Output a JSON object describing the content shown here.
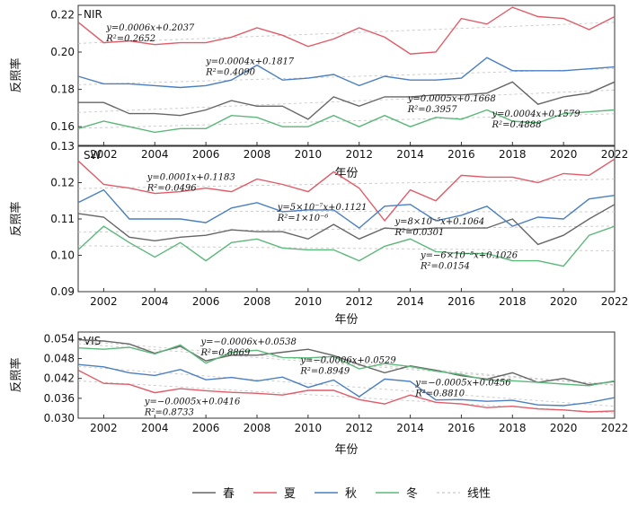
{
  "legend": [
    {
      "key": "spring",
      "label": "春",
      "color": "#666666",
      "dash": false
    },
    {
      "key": "summer",
      "label": "夏",
      "color": "#e25b68",
      "dash": false
    },
    {
      "key": "autumn",
      "label": "秋",
      "color": "#4a7fc1",
      "dash": false
    },
    {
      "key": "winter",
      "label": "冬",
      "color": "#5cb87a",
      "dash": false
    },
    {
      "key": "linear",
      "label": "线性",
      "color": "#bbbbbb",
      "dash": true
    }
  ],
  "chart_data": [
    {
      "type": "line",
      "panel_label": "NIR",
      "xlabel": "年份",
      "ylabel": "反照率",
      "xlim": [
        2001,
        2022
      ],
      "ylim": [
        0.15,
        0.225
      ],
      "yticks": [
        "0.16",
        "0.18",
        "0.20",
        "0.22"
      ],
      "ytick_values": [
        0.16,
        0.18,
        0.2,
        0.22
      ],
      "xticks": [
        "2002",
        "2004",
        "2006",
        "2008",
        "2010",
        "2012",
        "2014",
        "2016",
        "2018",
        "2020",
        "2022"
      ],
      "x": [
        2001,
        2002,
        2003,
        2004,
        2005,
        2006,
        2007,
        2008,
        2009,
        2010,
        2011,
        2012,
        2013,
        2014,
        2015,
        2016,
        2017,
        2018,
        2019,
        2020,
        2021,
        2022
      ],
      "series": [
        {
          "name": "春",
          "color": "#666666",
          "values": [
            0.173,
            0.173,
            0.167,
            0.167,
            0.166,
            0.169,
            0.174,
            0.171,
            0.171,
            0.164,
            0.176,
            0.171,
            0.176,
            0.176,
            0.177,
            0.177,
            0.178,
            0.184,
            0.172,
            0.176,
            0.178,
            0.184
          ]
        },
        {
          "name": "夏",
          "color": "#e25b68",
          "values": [
            0.216,
            0.205,
            0.206,
            0.204,
            0.205,
            0.205,
            0.208,
            0.213,
            0.209,
            0.203,
            0.207,
            0.213,
            0.208,
            0.199,
            0.2,
            0.218,
            0.215,
            0.224,
            0.219,
            0.218,
            0.212,
            0.219
          ]
        },
        {
          "name": "秋",
          "color": "#4a7fc1",
          "values": [
            0.187,
            0.183,
            0.183,
            0.182,
            0.181,
            0.182,
            0.185,
            0.193,
            0.185,
            0.186,
            0.188,
            0.182,
            0.187,
            0.185,
            0.185,
            0.186,
            0.197,
            0.19,
            0.19,
            0.19,
            0.191,
            0.192
          ]
        },
        {
          "name": "冬",
          "color": "#5cb87a",
          "values": [
            0.159,
            0.163,
            0.16,
            0.157,
            0.159,
            0.159,
            0.166,
            0.165,
            0.16,
            0.16,
            0.166,
            0.16,
            0.166,
            0.16,
            0.165,
            0.164,
            0.169,
            0.163,
            0.162,
            0.167,
            0.168,
            0.169
          ]
        }
      ],
      "annotations": [
        {
          "eq": "y=0.0006x+0.2037",
          "r2": "R²=0.2652",
          "x": 2002.1,
          "y": 0.2115
        },
        {
          "eq": "y=0.0004x+0.1817",
          "r2": "R²=0.4090",
          "x": 2006.0,
          "y": 0.1935
        },
        {
          "eq": "y=0.0005x+0.1668",
          "r2": "R²=0.3957",
          "x": 2013.9,
          "y": 0.1735
        },
        {
          "eq": "y=0.0004x+0.1579",
          "r2": "R²=0.4888",
          "x": 2017.2,
          "y": 0.1655
        }
      ]
    },
    {
      "type": "line",
      "panel_label": "SW",
      "xlabel": "年份",
      "ylabel": "反照率",
      "xlim": [
        2001,
        2022
      ],
      "ylim": [
        0.09,
        0.13
      ],
      "yticks": [
        "0.09",
        "0.10",
        "0.11",
        "0.12",
        "0.13"
      ],
      "ytick_values": [
        0.09,
        0.1,
        0.11,
        0.12,
        0.13
      ],
      "xticks": [
        "2002",
        "2004",
        "2006",
        "2008",
        "2010",
        "2012",
        "2014",
        "2016",
        "2018",
        "2020",
        "2022"
      ],
      "x": [
        2001,
        2002,
        2003,
        2004,
        2005,
        2006,
        2007,
        2008,
        2009,
        2010,
        2011,
        2012,
        2013,
        2014,
        2015,
        2016,
        2017,
        2018,
        2019,
        2020,
        2021,
        2022
      ],
      "series": [
        {
          "name": "春",
          "color": "#666666",
          "values": [
            0.1115,
            0.1105,
            0.105,
            0.104,
            0.105,
            0.1055,
            0.107,
            0.1065,
            0.1065,
            0.1045,
            0.1085,
            0.1045,
            0.1075,
            0.107,
            0.1075,
            0.1075,
            0.1075,
            0.11,
            0.103,
            0.1055,
            0.11,
            0.114
          ]
        },
        {
          "name": "夏",
          "color": "#e25b68",
          "values": [
            0.126,
            0.1195,
            0.1185,
            0.117,
            0.1175,
            0.1185,
            0.1175,
            0.121,
            0.1195,
            0.1175,
            0.123,
            0.1185,
            0.1095,
            0.118,
            0.115,
            0.122,
            0.1215,
            0.1215,
            0.12,
            0.1225,
            0.122,
            0.1265
          ]
        },
        {
          "name": "秋",
          "color": "#4a7fc1",
          "values": [
            0.1145,
            0.118,
            0.11,
            0.11,
            0.11,
            0.109,
            0.113,
            0.1145,
            0.112,
            0.1125,
            0.1125,
            0.1075,
            0.1135,
            0.114,
            0.1095,
            0.111,
            0.1135,
            0.108,
            0.1105,
            0.11,
            0.1155,
            0.1165
          ]
        },
        {
          "name": "冬",
          "color": "#5cb87a",
          "values": [
            0.1015,
            0.108,
            0.1035,
            0.0995,
            0.1035,
            0.0985,
            0.1035,
            0.1045,
            0.102,
            0.1015,
            0.1015,
            0.0985,
            0.1025,
            0.1045,
            0.101,
            0.1005,
            0.1005,
            0.0985,
            0.0985,
            0.097,
            0.1055,
            0.108
          ]
        }
      ],
      "annotations": [
        {
          "eq": "y=0.0001x+0.1183",
          "r2": "R²=0.0496",
          "x": 2003.7,
          "y": 0.1208
        },
        {
          "eq": "y=5×10⁻⁷x+0.1121",
          "r2": "R²=1×10⁻⁶",
          "x": 2008.8,
          "y": 0.1125
        },
        {
          "eq": "y=8×10⁻⁵x+0.1064",
          "r2": "R²=0.0301",
          "x": 2013.4,
          "y": 0.1085
        },
        {
          "eq": "y=−6×10⁻⁵x+0.1026",
          "r2": "R²=0.0154",
          "x": 2014.4,
          "y": 0.0993
        }
      ]
    },
    {
      "type": "line",
      "panel_label": "VIS",
      "xlabel": "年份",
      "ylabel": "反照率",
      "xlim": [
        2001,
        2022
      ],
      "ylim": [
        0.03,
        0.056
      ],
      "yticks": [
        "0.030",
        "0.036",
        "0.042",
        "0.048",
        "0.054"
      ],
      "ytick_values": [
        0.03,
        0.036,
        0.042,
        0.048,
        0.054
      ],
      "xticks": [
        "2002",
        "2004",
        "2006",
        "2008",
        "2010",
        "2012",
        "2014",
        "2016",
        "2018",
        "2020",
        "2022"
      ],
      "x": [
        2001,
        2002,
        2003,
        2004,
        2005,
        2006,
        2007,
        2008,
        2009,
        2010,
        2011,
        2012,
        2013,
        2014,
        2015,
        2016,
        2017,
        2018,
        2019,
        2020,
        2021,
        2022
      ],
      "series": [
        {
          "name": "春",
          "color": "#666666",
          "values": [
            0.0537,
            0.0533,
            0.0524,
            0.0496,
            0.0517,
            0.0473,
            0.049,
            0.049,
            0.0499,
            0.0508,
            0.0489,
            0.0462,
            0.0437,
            0.0458,
            0.0445,
            0.0428,
            0.0418,
            0.0437,
            0.0408,
            0.042,
            0.0401,
            0.0411
          ]
        },
        {
          "name": "夏",
          "color": "#e25b68",
          "values": [
            0.0445,
            0.0405,
            0.0402,
            0.0377,
            0.0389,
            0.0383,
            0.0378,
            0.0375,
            0.037,
            0.0384,
            0.0384,
            0.0356,
            0.0343,
            0.037,
            0.0348,
            0.0343,
            0.0332,
            0.0336,
            0.0328,
            0.0325,
            0.0319,
            0.0322
          ]
        },
        {
          "name": "秋",
          "color": "#4a7fc1",
          "values": [
            0.0462,
            0.0455,
            0.0437,
            0.0429,
            0.0447,
            0.0416,
            0.0423,
            0.0412,
            0.0424,
            0.0393,
            0.0415,
            0.0365,
            0.0418,
            0.0411,
            0.0355,
            0.0356,
            0.0351,
            0.0354,
            0.034,
            0.0338,
            0.0347,
            0.0362
          ]
        },
        {
          "name": "冬",
          "color": "#5cb87a",
          "values": [
            0.0512,
            0.0508,
            0.0514,
            0.0494,
            0.0521,
            0.0466,
            0.0499,
            0.0505,
            0.0483,
            0.0482,
            0.0486,
            0.0449,
            0.0465,
            0.0456,
            0.0442,
            0.0432,
            0.0415,
            0.0413,
            0.0408,
            0.0403,
            0.0398,
            0.0413
          ]
        }
      ],
      "annotations": [
        {
          "eq": "y=−0.0006x+0.0538",
          "r2": "R²=0.8869",
          "x": 2005.8,
          "y": 0.0522
        },
        {
          "eq": "y=−0.0006x+0.0529",
          "r2": "R²=0.8949",
          "x": 2009.7,
          "y": 0.0467
        },
        {
          "eq": "y=−0.0005x+0.0456",
          "r2": "R²=0.8810",
          "x": 2014.2,
          "y": 0.0399
        },
        {
          "eq": "y=−0.0005x+0.0416",
          "r2": "R²=0.8733",
          "x": 2003.6,
          "y": 0.0342
        }
      ]
    }
  ]
}
